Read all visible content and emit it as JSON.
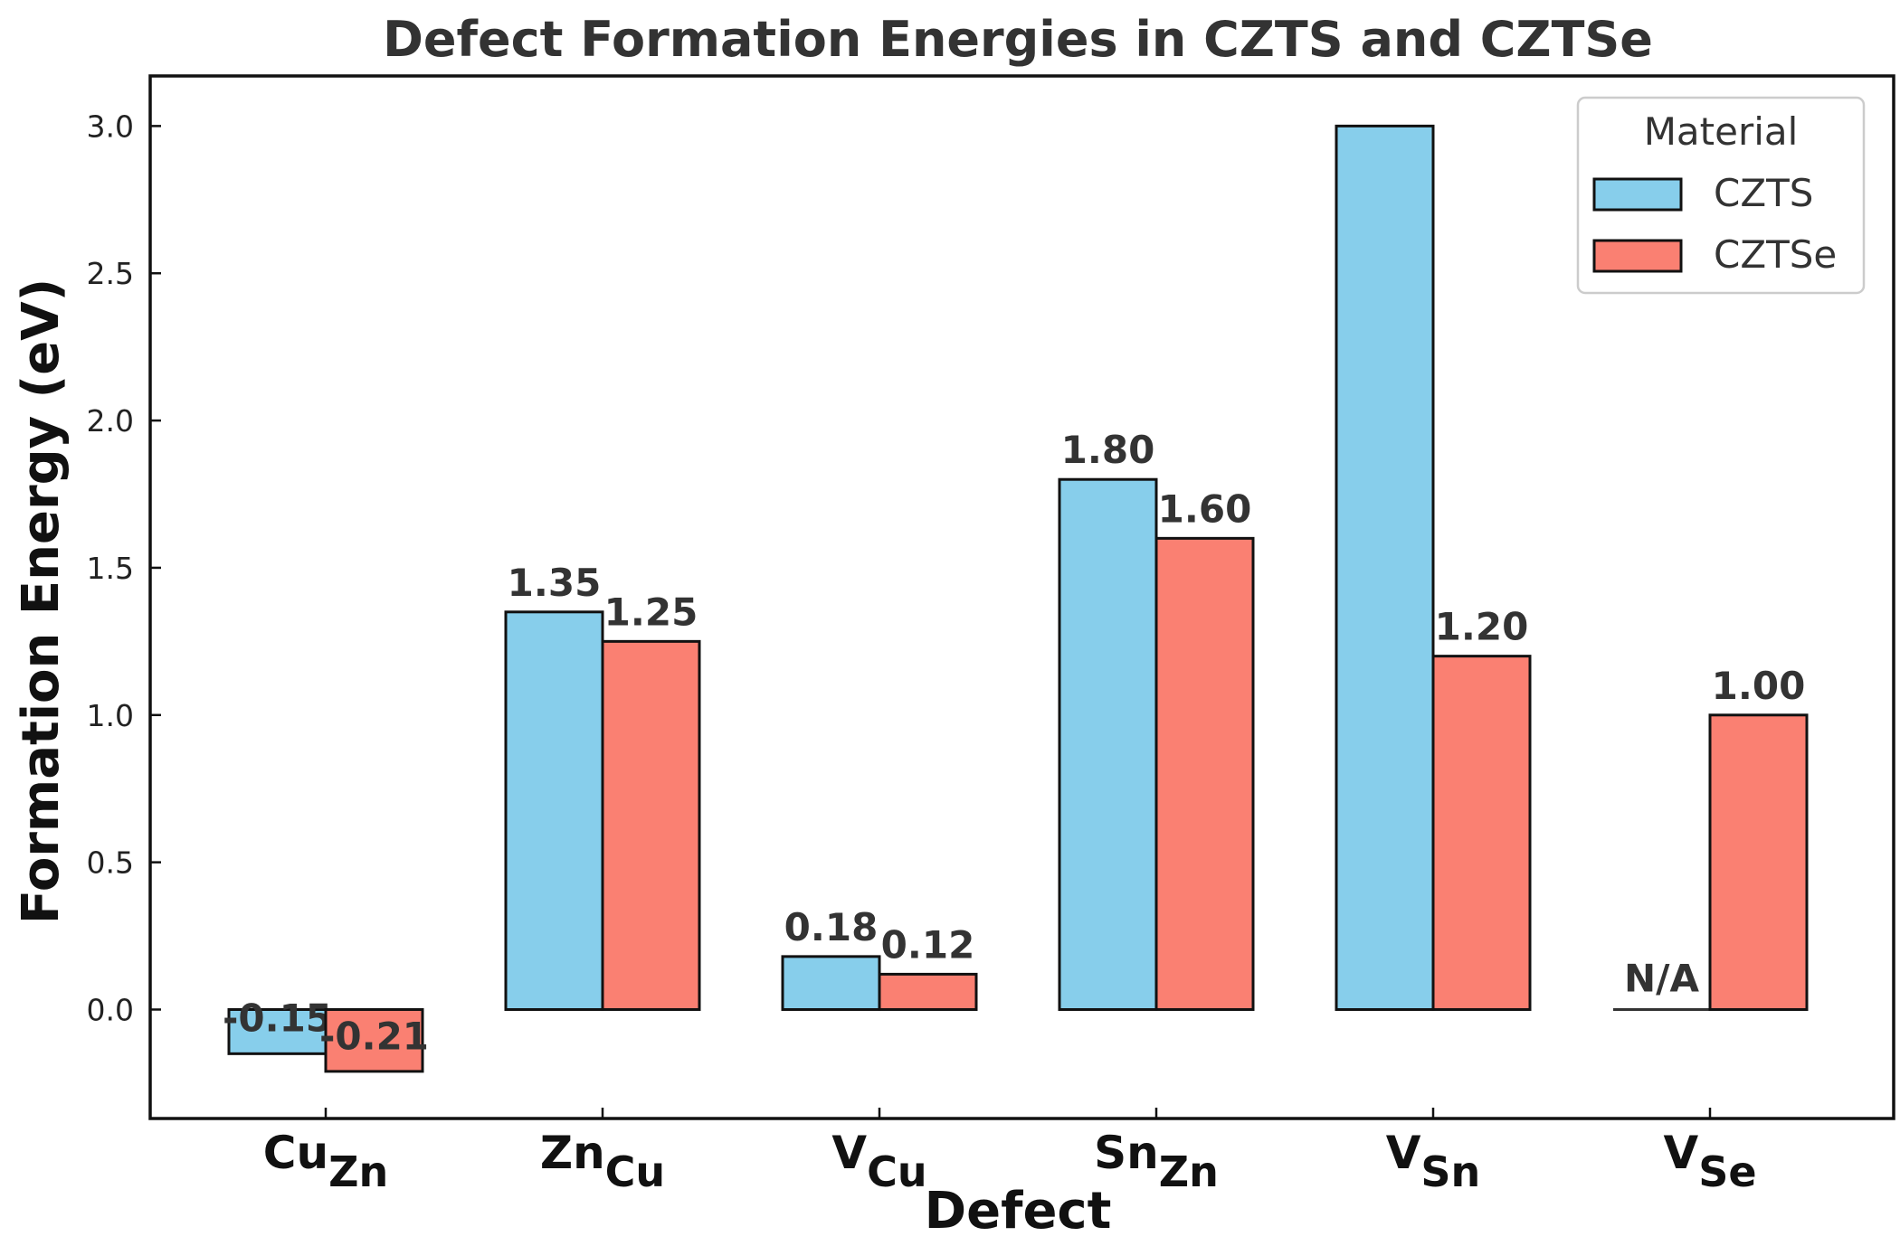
{
  "chart_data": {
    "type": "bar",
    "title": "Defect Formation Energies in CZTS and CZTSe",
    "xlabel": "Defect",
    "ylabel": "Formation Energy (eV)",
    "ylim": [
      -0.37,
      3.17
    ],
    "yticks": [
      0.0,
      0.5,
      1.0,
      1.5,
      2.0,
      2.5,
      3.0
    ],
    "ytick_labels": [
      "0.0",
      "0.5",
      "1.0",
      "1.5",
      "2.0",
      "2.5",
      "3.0"
    ],
    "categories": [
      {
        "base": "Cu",
        "sub": "Zn"
      },
      {
        "base": "Zn",
        "sub": "Cu"
      },
      {
        "base": "V",
        "sub": "Cu"
      },
      {
        "base": "Sn",
        "sub": "Zn"
      },
      {
        "base": "V",
        "sub": "Sn"
      },
      {
        "base": "V",
        "sub": "Se"
      }
    ],
    "series": [
      {
        "name": "CZTS",
        "color": "#87ceeb",
        "values": [
          -0.15,
          1.35,
          0.18,
          1.8,
          3.0,
          null
        ],
        "labels": [
          "-0.15",
          "1.35",
          "0.18",
          "1.80",
          "",
          "N/A"
        ]
      },
      {
        "name": "CZTSe",
        "color": "#fa8072",
        "values": [
          -0.21,
          1.25,
          0.12,
          1.6,
          1.2,
          1.0
        ],
        "labels": [
          "-0.21",
          "1.25",
          "0.12",
          "1.60",
          "1.20",
          "1.00"
        ]
      }
    ],
    "legend": {
      "title": "Material",
      "position": "top-right"
    },
    "grid": false
  }
}
